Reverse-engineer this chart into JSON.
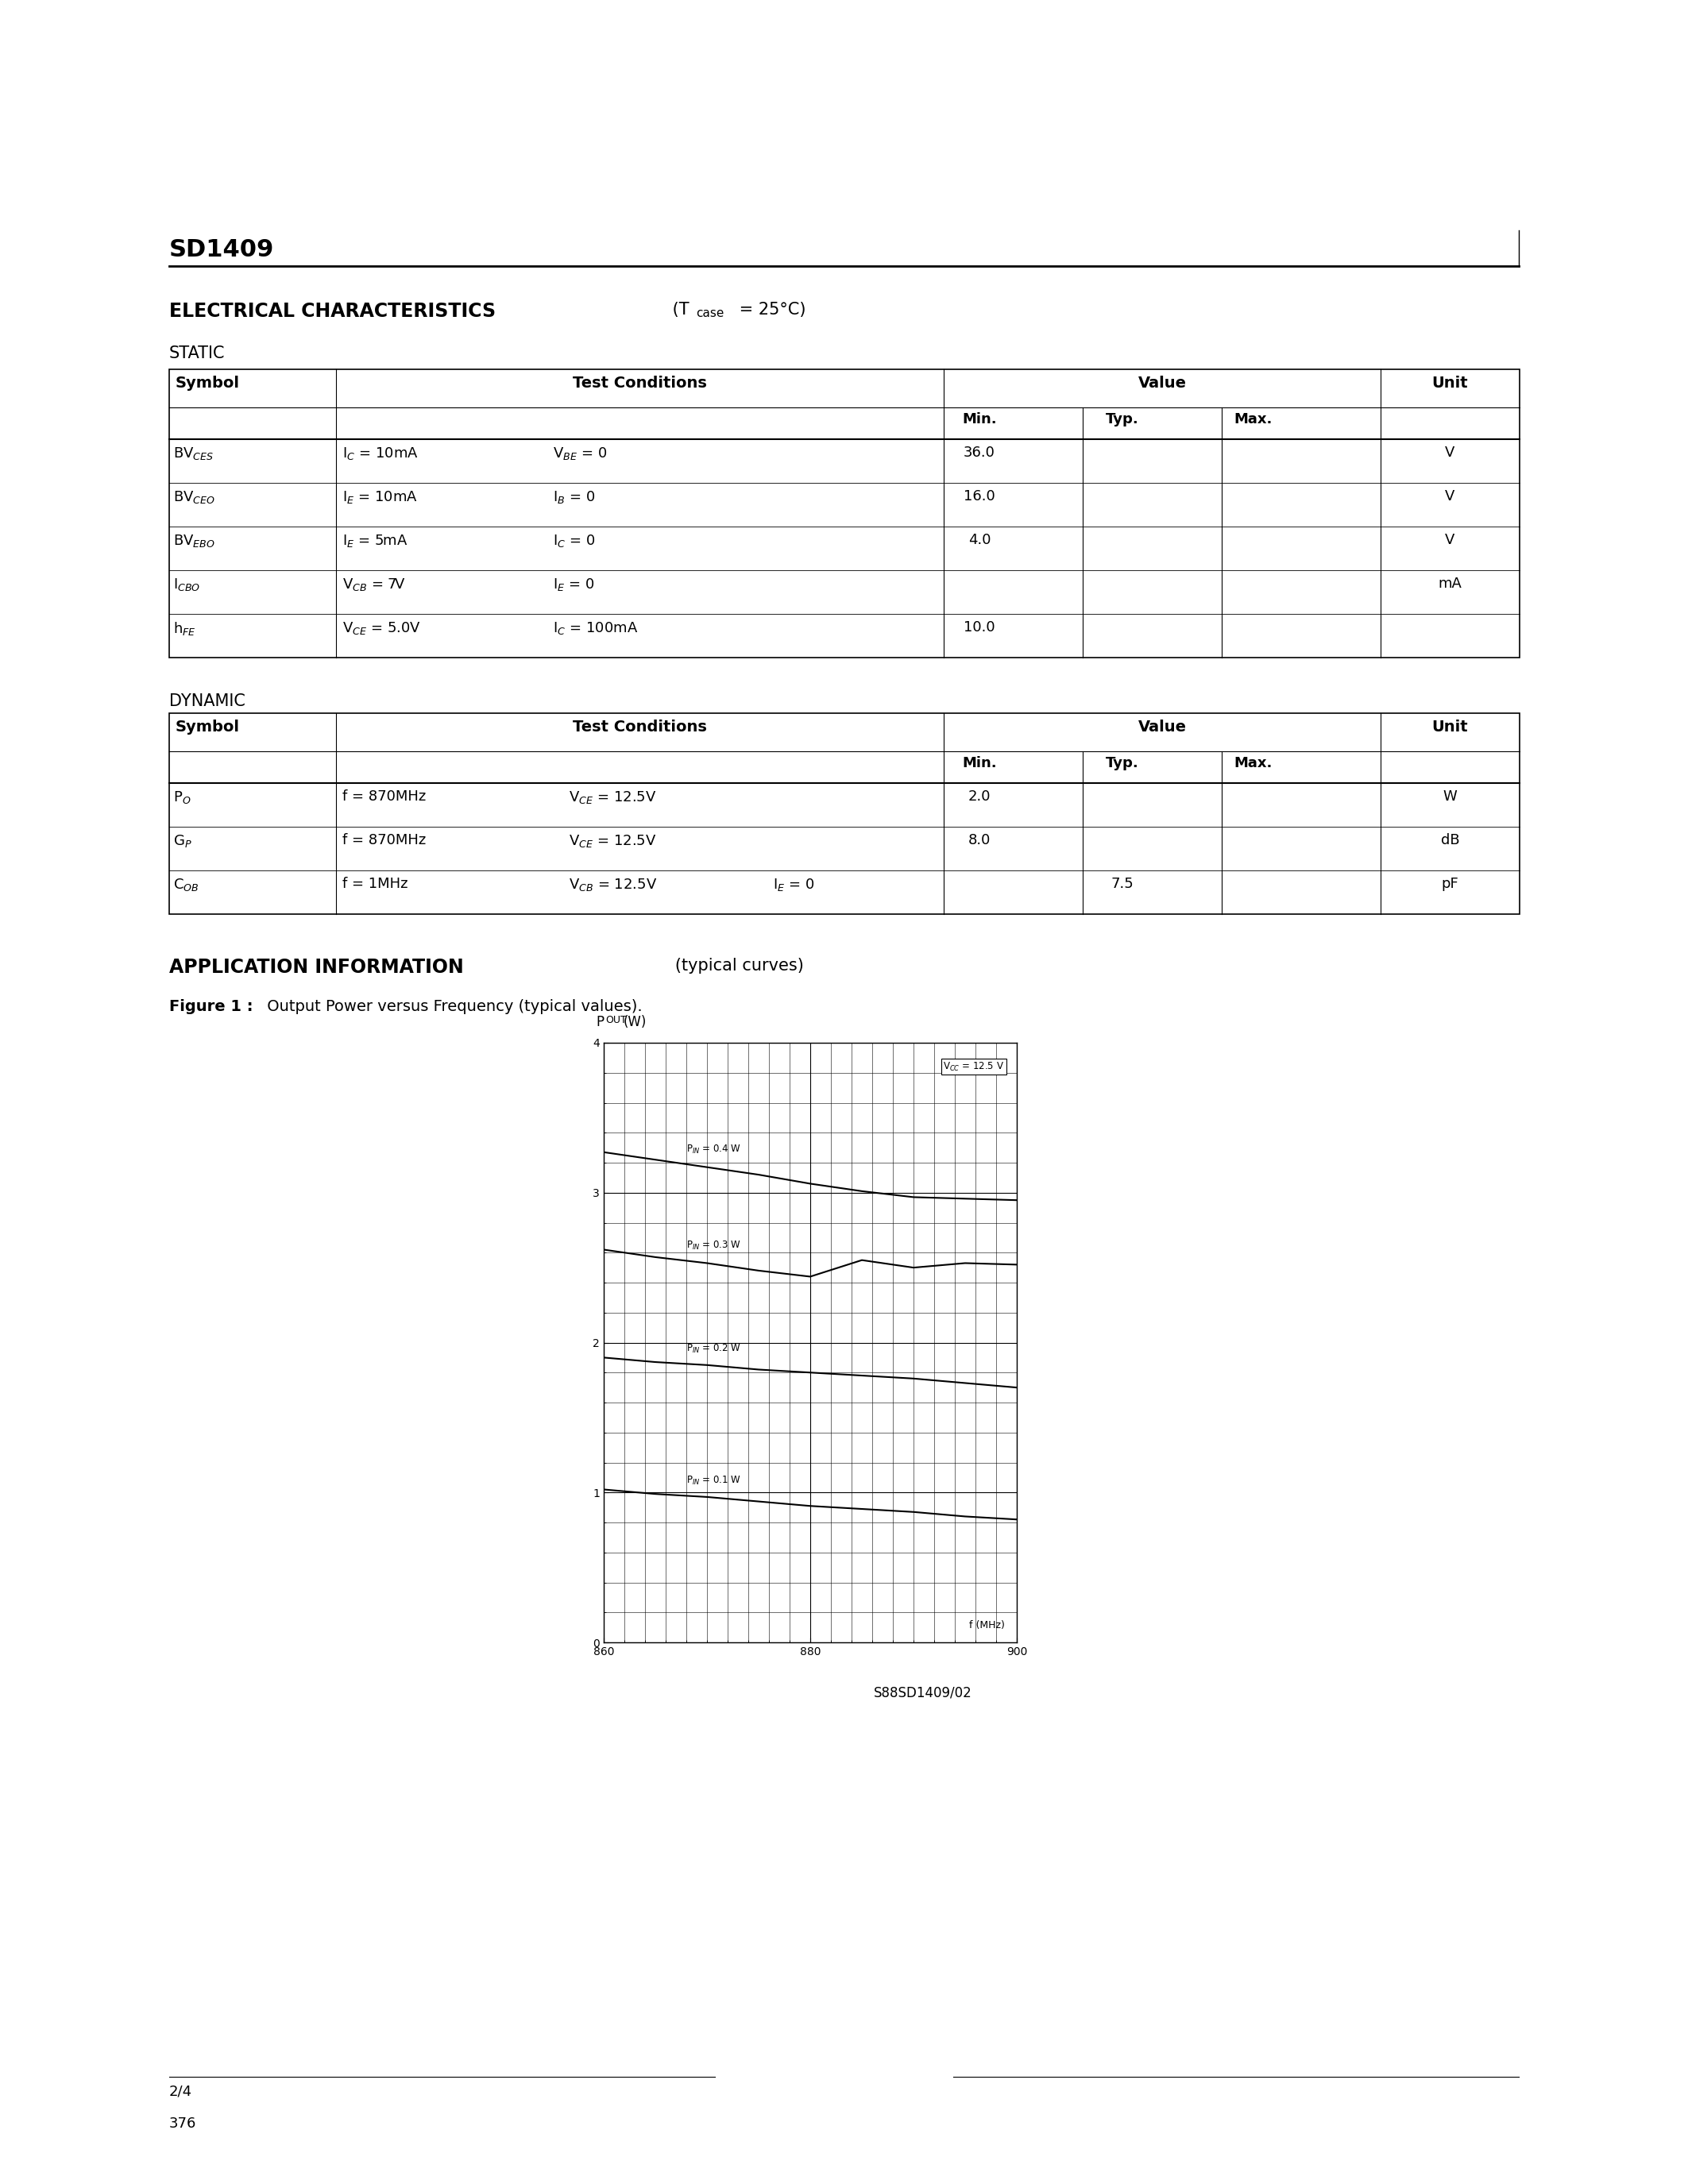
{
  "title": "SD1409",
  "page_bg": "#ffffff",
  "section_elec": "ELECTRICAL CHARACTERISTICS",
  "static_label": "STATIC",
  "dynamic_label": "DYNAMIC",
  "app_info_label": "APPLICATION INFORMATION",
  "app_info_sub": "   (typical curves)",
  "fig1_label": "Figure 1 :",
  "fig1_title": " Output Power versus Frequency (typical values).",
  "static_rows": [
    [
      "BV$_{CES}$",
      "I$_C$ = 10mA",
      "V$_{BE}$ = 0",
      "36.0",
      "",
      "",
      "V"
    ],
    [
      "BV$_{CEO}$",
      "I$_E$ = 10mA",
      "I$_B$ = 0",
      "16.0",
      "",
      "",
      "V"
    ],
    [
      "BV$_{EBO}$",
      "I$_E$ = 5mA",
      "I$_C$ = 0",
      "4.0",
      "",
      "",
      "V"
    ],
    [
      "I$_{CBO}$",
      "V$_{CB}$ = 7V",
      "I$_E$ = 0",
      "",
      "",
      "",
      "mA"
    ],
    [
      "h$_{FE}$",
      "V$_{CE}$ = 5.0V",
      "I$_C$ = 100mA",
      "10.0",
      "",
      "",
      ""
    ]
  ],
  "dynamic_rows": [
    [
      "P$_O$",
      "f = 870MHz",
      "V$_{CE}$ = 12.5V",
      "",
      "2.0",
      "",
      "",
      "W"
    ],
    [
      "G$_P$",
      "f = 870MHz",
      "V$_{CE}$ = 12.5V",
      "",
      "8.0",
      "",
      "",
      "dB"
    ],
    [
      "C$_{OB}$",
      "f = 1MHz",
      "V$_{CB}$ = 12.5V",
      "I$_E$ = 0",
      "",
      "7.5",
      "",
      "pF"
    ]
  ],
  "plot_vcc_label": "V$_{CC}$ = 12.5 V",
  "plot_curves": [
    {
      "label": "P$_{IN}$ = 0.4 W",
      "vals": [
        3.28,
        3.2,
        3.12,
        3.04,
        2.95
      ]
    },
    {
      "label": "P$_{IN}$ = 0.3 W",
      "vals": [
        2.62,
        2.55,
        2.48,
        2.4,
        2.52
      ]
    },
    {
      "label": "P$_{IN}$ = 0.2 W",
      "vals": [
        1.9,
        1.85,
        1.8,
        1.75,
        1.7
      ]
    },
    {
      "label": "P$_{IN}$ = 0.1 W",
      "vals": [
        1.01,
        0.96,
        0.91,
        0.86,
        0.82
      ]
    }
  ],
  "watermark": "S88SD1409/02",
  "footer_page": "2/4",
  "footer_num": "376"
}
